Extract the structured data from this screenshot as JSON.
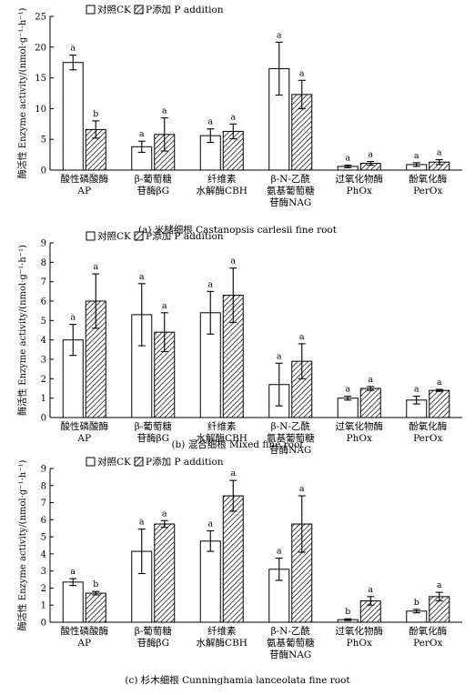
{
  "legend": {
    "ck": "对照CK",
    "p": "P添加 P addition"
  },
  "chart_data": [
    {
      "type": "bar",
      "caption": "(a) 米槠细根 Castanopsis carlesii fine root",
      "ylabel": "酶活性 Enzyme activity/(nmol·g⁻¹·h⁻¹)",
      "ylim": [
        0,
        25
      ],
      "yticks": [
        0,
        5,
        10,
        15,
        20,
        25
      ],
      "categories": [
        [
          "酸性磷酸酶",
          "AP"
        ],
        [
          "β-葡萄糖",
          "苷酶βG"
        ],
        [
          "纤维素",
          "水解酶CBH"
        ],
        [
          "β-N-乙酰",
          "氨基葡萄糖",
          "苷酶NAG"
        ],
        [
          "过氧化物酶",
          "PhOx"
        ],
        [
          "酚氧化酶",
          "PerOx"
        ]
      ],
      "series": [
        {
          "name": "对照CK",
          "values": [
            17.5,
            3.8,
            5.6,
            16.5,
            0.6,
            0.9
          ],
          "errors": [
            1.2,
            0.9,
            1.1,
            4.3,
            0.2,
            0.3
          ],
          "sig": [
            "a",
            "a",
            "a",
            "a",
            "a",
            "a"
          ]
        },
        {
          "name": "P添加 P addition",
          "values": [
            6.6,
            5.8,
            6.3,
            12.3,
            1.1,
            1.3
          ],
          "errors": [
            1.4,
            2.7,
            1.2,
            2.3,
            0.3,
            0.4
          ],
          "sig": [
            "b",
            "a",
            "a",
            "a",
            "a",
            "a"
          ]
        }
      ]
    },
    {
      "type": "bar",
      "caption": "(b) 混合细根 Mixed fine root",
      "ylabel": "酶活性 Enzyme activity/(nmol·g⁻¹·h⁻¹)",
      "ylim": [
        0,
        9
      ],
      "yticks": [
        0,
        1,
        2,
        3,
        4,
        5,
        6,
        7,
        8,
        9
      ],
      "categories": [
        [
          "酸性磷酸酶",
          "AP"
        ],
        [
          "β-葡萄糖",
          "苷酶βG"
        ],
        [
          "纤维素",
          "水解酶CBH"
        ],
        [
          "β-N-乙酰",
          "氨基葡萄糖",
          "苷酶NAG"
        ],
        [
          "过氧化物酶",
          "PhOx"
        ],
        [
          "酚氧化酶",
          "PerOx"
        ]
      ],
      "series": [
        {
          "name": "对照CK",
          "values": [
            4.0,
            5.3,
            5.4,
            1.7,
            1.0,
            0.9
          ],
          "errors": [
            0.8,
            1.6,
            1.1,
            1.1,
            0.1,
            0.2
          ],
          "sig": [
            "a",
            "a",
            "a",
            "a",
            "a",
            "a"
          ]
        },
        {
          "name": "P添加 P addition",
          "values": [
            6.0,
            4.4,
            6.3,
            2.9,
            1.5,
            1.4
          ],
          "errors": [
            1.4,
            1.0,
            1.4,
            0.9,
            0.1,
            0.05
          ],
          "sig": [
            "a",
            "a",
            "a",
            "a",
            "a",
            "a"
          ]
        }
      ]
    },
    {
      "type": "bar",
      "caption": "(c) 杉木细根 Cunninghamia lanceolata fine root",
      "ylabel": "酶活性 Enzyme activity/(nmol·g⁻¹·h⁻¹)",
      "ylim": [
        0,
        9
      ],
      "yticks": [
        0,
        1,
        2,
        3,
        4,
        5,
        6,
        7,
        8,
        9
      ],
      "categories": [
        [
          "酸性磷酸酶",
          "AP"
        ],
        [
          "β-葡萄糖",
          "苷酶βG"
        ],
        [
          "纤维素",
          "水解酶CBH"
        ],
        [
          "β-N-乙酰",
          "氨基葡萄糖",
          "苷酶NAG"
        ],
        [
          "过氧化物酶",
          "PhOx"
        ],
        [
          "酚氧化酶",
          "PerOx"
        ]
      ],
      "series": [
        {
          "name": "对照CK",
          "values": [
            2.35,
            4.15,
            4.75,
            3.1,
            0.15,
            0.65
          ],
          "errors": [
            0.2,
            1.3,
            0.6,
            0.65,
            0.05,
            0.1
          ],
          "sig": [
            "a",
            "a",
            "a",
            "a",
            "b",
            "b"
          ]
        },
        {
          "name": "P添加 P addition",
          "values": [
            1.7,
            5.75,
            7.4,
            5.75,
            1.25,
            1.5
          ],
          "errors": [
            0.1,
            0.2,
            0.9,
            1.65,
            0.25,
            0.25
          ],
          "sig": [
            "b",
            "a",
            "a",
            "a",
            "a",
            "a"
          ]
        }
      ]
    }
  ]
}
